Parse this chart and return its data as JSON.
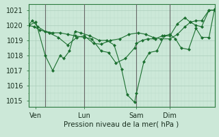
{
  "xlabel": "Pression niveau de la mer( hPa )",
  "bg_color": "#cce8d8",
  "grid_major_color": "#aacebb",
  "grid_minor_color": "#bcdeca",
  "line_color": "#1a6e2e",
  "marker_color": "#1a6e2e",
  "ylim": [
    1014.6,
    1021.4
  ],
  "xlim": [
    0,
    100
  ],
  "xtick_labels": [
    "Ven",
    "Lun",
    "Sam",
    "Dim"
  ],
  "xtick_positions": [
    4,
    30,
    58,
    76
  ],
  "ytick_positions": [
    1015,
    1016,
    1017,
    1018,
    1019,
    1020,
    1021
  ],
  "series": [
    {
      "x": [
        0,
        2,
        5,
        9,
        13,
        17,
        21,
        25,
        30,
        34,
        39,
        43,
        47,
        52,
        57,
        58,
        61,
        64,
        68,
        72,
        76,
        80,
        84,
        87,
        90,
        93,
        97,
        100
      ],
      "y": [
        1020.0,
        1020.3,
        1019.9,
        1019.6,
        1019.5,
        1019.5,
        1019.4,
        1019.3,
        1019.2,
        1019.1,
        1018.3,
        1018.2,
        1017.5,
        1017.8,
        1018.5,
        1018.8,
        1019.0,
        1019.1,
        1019.1,
        1019.3,
        1019.3,
        1020.1,
        1020.5,
        1020.2,
        1020.3,
        1020.3,
        1021.0,
        1021.0
      ]
    },
    {
      "x": [
        0,
        4,
        9,
        13,
        17,
        19,
        22,
        25,
        28,
        33,
        38,
        42,
        46,
        50,
        53,
        57,
        58,
        62,
        65,
        69,
        73,
        76,
        79,
        82,
        86,
        90,
        93,
        97,
        100
      ],
      "y": [
        1020.0,
        1020.2,
        1018.0,
        1017.0,
        1018.0,
        1017.8,
        1018.3,
        1019.6,
        1019.5,
        1019.3,
        1019.0,
        1019.0,
        1018.7,
        1017.1,
        1015.4,
        1014.9,
        1015.5,
        1017.6,
        1018.2,
        1018.3,
        1019.3,
        1019.4,
        1019.1,
        1018.5,
        1018.4,
        1019.8,
        1019.2,
        1019.2,
        1021.1
      ]
    },
    {
      "x": [
        0,
        3,
        6,
        11,
        16,
        21,
        26,
        30,
        35,
        39,
        44,
        49,
        54,
        59,
        63,
        67,
        71,
        76,
        80,
        84,
        87,
        90,
        93,
        97,
        100
      ],
      "y": [
        1020.0,
        1019.9,
        1019.7,
        1019.5,
        1019.2,
        1018.7,
        1019.2,
        1019.3,
        1018.8,
        1018.75,
        1019.0,
        1019.1,
        1019.4,
        1019.5,
        1019.4,
        1019.2,
        1019.1,
        1019.1,
        1019.4,
        1019.9,
        1020.2,
        1020.0,
        1019.9,
        1021.0,
        1021.0
      ]
    }
  ],
  "vline_positions": [
    9,
    30,
    58,
    76
  ],
  "vline_color": "#666666"
}
